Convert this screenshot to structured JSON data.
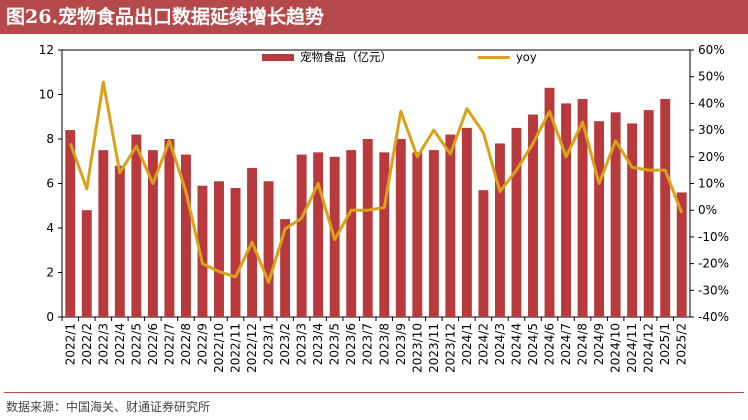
{
  "title": "图26.宠物食品出口数据延续增长趋势",
  "source": "数据来源：中国海关、财通证券研究所",
  "colors": {
    "bar": "#b83a3d",
    "line": "#d9a21a",
    "title_bg": "#b5484a"
  },
  "chart_data": {
    "type": "bar+line",
    "title": "图26.宠物食品出口数据延续增长趋势",
    "categories": [
      "2022/1",
      "2022/2",
      "2022/3",
      "2022/4",
      "2022/5",
      "2022/6",
      "2022/7",
      "2022/8",
      "2022/9",
      "2022/10",
      "2022/11",
      "2022/12",
      "2023/1",
      "2023/2",
      "2023/3",
      "2023/4",
      "2023/5",
      "2023/6",
      "2023/7",
      "2023/8",
      "2023/9",
      "2023/10",
      "2023/11",
      "2023/12",
      "2024/1",
      "2024/2",
      "2024/3",
      "2024/4",
      "2024/5",
      "2024/6",
      "2024/7",
      "2024/8",
      "2024/9",
      "2024/10",
      "2024/11",
      "2024/12",
      "2025/1",
      "2025/2"
    ],
    "series": [
      {
        "name": "宠物食品（亿元）",
        "type": "bar",
        "axis": "left",
        "values": [
          8.4,
          4.8,
          7.5,
          6.8,
          8.2,
          7.5,
          8.0,
          7.3,
          5.9,
          6.1,
          5.8,
          6.7,
          6.1,
          4.4,
          7.3,
          7.4,
          7.2,
          7.5,
          8.0,
          7.4,
          8.0,
          7.4,
          7.5,
          8.2,
          8.5,
          5.7,
          7.8,
          8.5,
          9.1,
          10.3,
          9.6,
          9.8,
          8.8,
          9.2,
          8.7,
          9.3,
          9.8,
          5.6
        ]
      },
      {
        "name": "yoy",
        "type": "line",
        "axis": "right",
        "values": [
          25,
          8,
          48,
          14,
          24,
          10,
          26,
          7,
          -20,
          -23,
          -25,
          -12,
          -27,
          -7,
          -3,
          10,
          -11,
          0,
          0,
          1,
          37,
          20,
          30,
          21,
          38,
          29,
          7,
          15,
          25,
          37,
          20,
          33,
          10,
          26,
          16,
          15,
          15,
          -1
        ]
      }
    ],
    "left_axis": {
      "min": 0,
      "max": 12,
      "ticks": [
        0,
        2,
        4,
        6,
        8,
        10,
        12
      ]
    },
    "right_axis": {
      "min": -40,
      "max": 60,
      "ticks": [
        -40,
        -30,
        -20,
        -10,
        0,
        10,
        20,
        30,
        40,
        50,
        60
      ],
      "tick_suffix": "%"
    },
    "legend_position": "top-center",
    "grid": false
  }
}
